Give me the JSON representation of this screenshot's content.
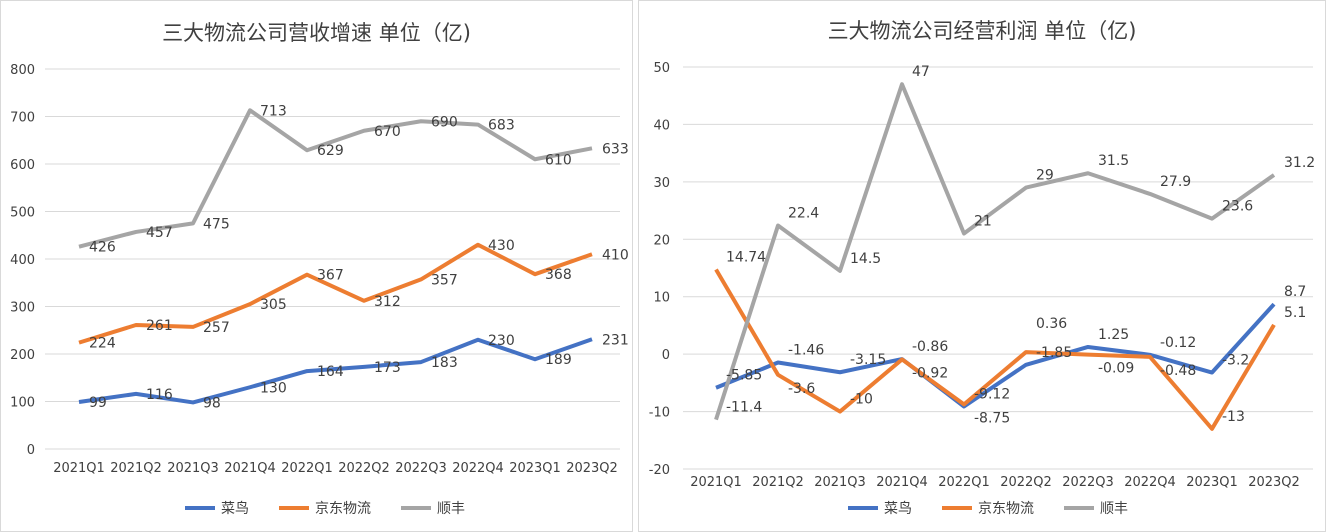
{
  "chart_data": [
    {
      "type": "line",
      "title": "三大物流公司营收增速 单位（亿)",
      "categories": [
        "2021Q1",
        "2021Q2",
        "2021Q3",
        "2021Q4",
        "2022Q1",
        "2022Q2",
        "2022Q3",
        "2022Q4",
        "2023Q1",
        "2023Q2"
      ],
      "ylim": [
        0,
        800
      ],
      "yticks": [
        0,
        100,
        200,
        300,
        400,
        500,
        600,
        700,
        800
      ],
      "grid": true,
      "legend": "bottom",
      "series": [
        {
          "name": "菜鸟",
          "color": "#4472C4",
          "values": [
            99,
            116,
            98,
            130,
            164,
            173,
            183,
            230,
            189,
            231
          ]
        },
        {
          "name": "京东物流",
          "color": "#ED7D31",
          "values": [
            224,
            261,
            257,
            305,
            367,
            312,
            357,
            430,
            368,
            410
          ]
        },
        {
          "name": "顺丰",
          "color": "#A5A5A5",
          "values": [
            426,
            457,
            475,
            713,
            629,
            670,
            690,
            683,
            610,
            633
          ]
        }
      ]
    },
    {
      "type": "line",
      "title": "三大物流公司经营利润 单位（亿)",
      "categories": [
        "2021Q1",
        "2021Q2",
        "2021Q3",
        "2021Q4",
        "2022Q1",
        "2022Q2",
        "2022Q3",
        "2022Q4",
        "2023Q1",
        "2023Q2"
      ],
      "ylim": [
        -20,
        50
      ],
      "yticks": [
        -20,
        -10,
        0,
        10,
        20,
        30,
        40,
        50
      ],
      "grid": true,
      "legend": "bottom",
      "series": [
        {
          "name": "菜鸟",
          "color": "#4472C4",
          "values": [
            -5.85,
            -1.46,
            -3.15,
            -0.86,
            -9.12,
            -1.85,
            1.25,
            -0.12,
            -3.2,
            8.7
          ]
        },
        {
          "name": "京东物流",
          "color": "#ED7D31",
          "values": [
            14.74,
            -3.6,
            -10,
            -0.92,
            -8.75,
            0.36,
            -0.09,
            -0.48,
            -13,
            5.1
          ]
        },
        {
          "name": "顺丰",
          "color": "#A5A5A5",
          "values": [
            -11.4,
            22.4,
            14.5,
            47,
            21,
            29,
            31.5,
            27.9,
            23.6,
            31.2
          ]
        }
      ]
    }
  ]
}
